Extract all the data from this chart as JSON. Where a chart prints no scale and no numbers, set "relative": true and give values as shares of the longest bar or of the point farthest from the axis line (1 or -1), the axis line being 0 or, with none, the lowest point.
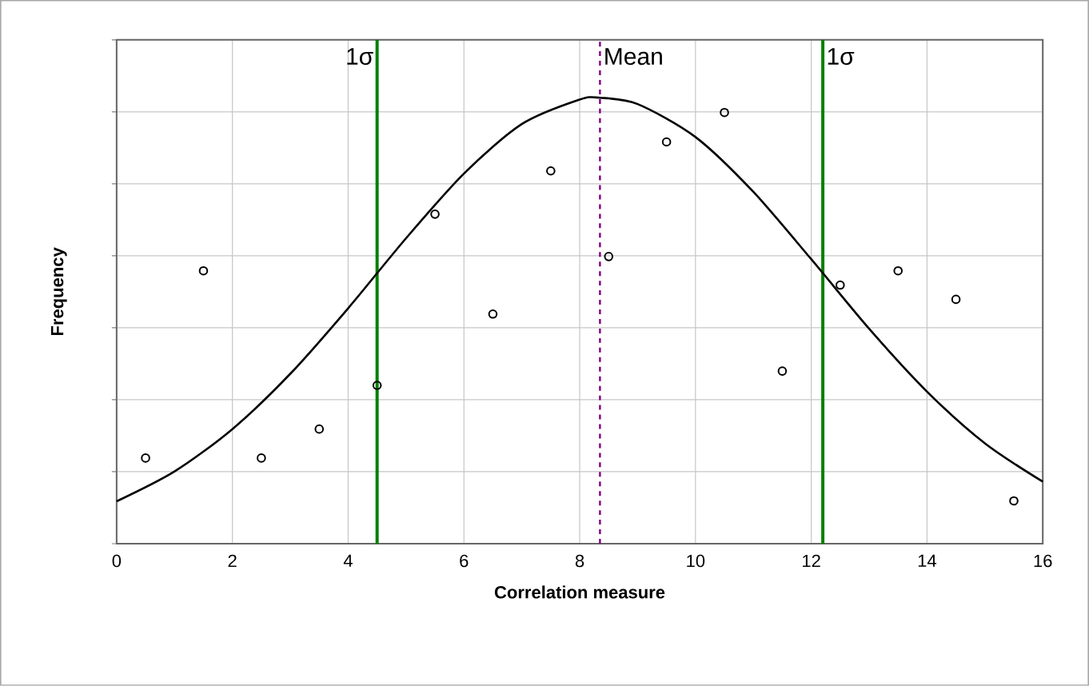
{
  "chart_data": {
    "type": "scatter",
    "xlabel": "Correlation measure",
    "ylabel": "Frequency",
    "xlim": [
      0,
      16
    ],
    "xticks": [
      0,
      2,
      4,
      6,
      8,
      10,
      12,
      14,
      16
    ],
    "relative": true,
    "grid": true,
    "tick_labels": "x",
    "marker": "circle",
    "series": [
      {
        "color": "#000000",
        "x": [
          0.5,
          1.5,
          2.5,
          3.5,
          4.5,
          5.5,
          6.5,
          7.5,
          8.5,
          9.5,
          10.5,
          11.5,
          12.5,
          13.5,
          14.5,
          15.5
        ],
        "values": [
          0.192,
          0.612,
          0.192,
          0.257,
          0.355,
          0.739,
          0.515,
          0.836,
          0.644,
          0.901,
          0.967,
          0.387,
          0.58,
          0.612,
          0.548,
          0.096
        ]
      },
      {
        "type": "line",
        "color": "#000000",
        "marker": "none",
        "x": [
          0,
          1,
          2,
          3,
          4,
          5,
          6,
          7,
          8,
          8.35,
          9,
          10,
          11,
          12,
          13,
          14,
          15,
          16
        ],
        "values": [
          0.095,
          0.162,
          0.257,
          0.381,
          0.528,
          0.685,
          0.83,
          0.941,
          0.996,
          1,
          0.986,
          0.912,
          0.789,
          0.638,
          0.482,
          0.341,
          0.225,
          0.139
        ]
      }
    ],
    "ref_lines": [
      {
        "axis": "x",
        "value": 4.5,
        "label": "1σ",
        "color": "#008000",
        "line_style": "solid"
      },
      {
        "axis": "x",
        "value": 8.35,
        "label": "Mean",
        "color": "#800080",
        "line_style": "dashed"
      },
      {
        "axis": "x",
        "value": 12.2,
        "label": "1σ",
        "color": "#008000",
        "line_style": "solid"
      }
    ]
  }
}
